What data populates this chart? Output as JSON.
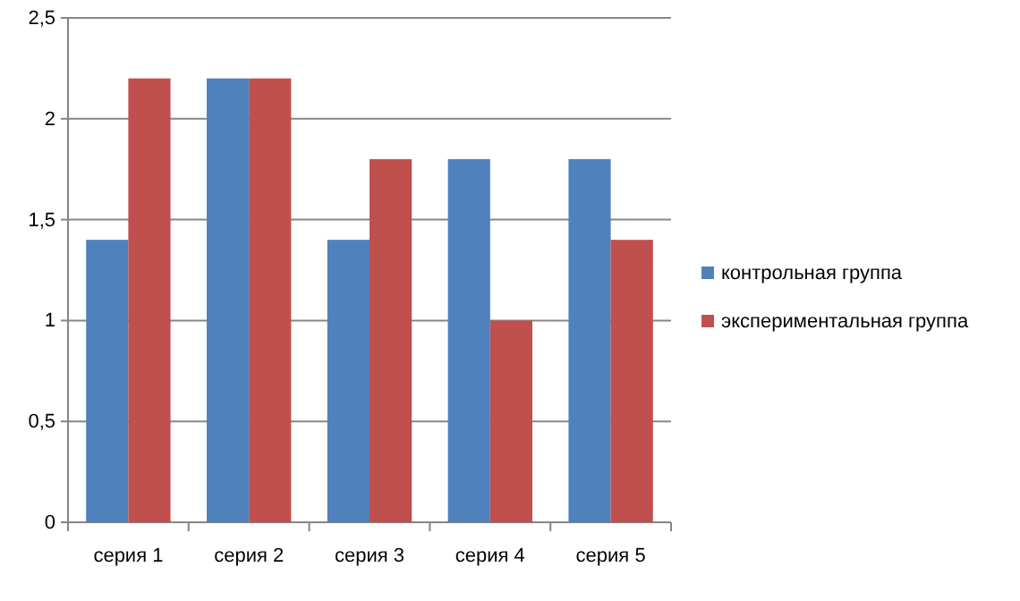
{
  "chart_data": {
    "type": "bar",
    "categories": [
      "серия 1",
      "серия 2",
      "серия 3",
      "серия 4",
      "серия 5"
    ],
    "series": [
      {
        "name": "контрольная группа",
        "color": "#4f81bd",
        "values": [
          1.4,
          2.2,
          1.4,
          1.8,
          1.8
        ]
      },
      {
        "name": "экспериментальная группа",
        "color": "#c0504d",
        "values": [
          2.2,
          2.2,
          1.8,
          1.0,
          1.4
        ]
      }
    ],
    "ylim": [
      0,
      2.5
    ],
    "yticks": [
      0,
      {
        "value": 0.5,
        "label": "0,5"
      },
      1,
      {
        "value": 1.5,
        "label": "1,5"
      },
      2,
      {
        "value": 2.5,
        "label": "2,5"
      }
    ],
    "grid": "y",
    "legend": "right"
  }
}
